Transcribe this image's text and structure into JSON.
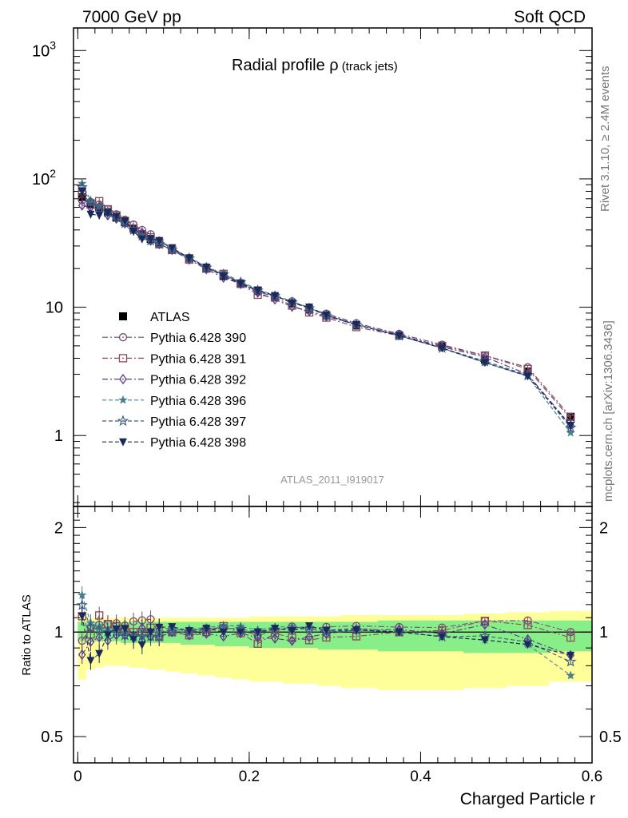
{
  "header": {
    "left": "7000 GeV pp",
    "right": "Soft QCD"
  },
  "side": {
    "top": "Rivet 3.1.10, ≥ 2.4M events",
    "bottom": "mcplots.cern.ch [arXiv:1306.3436]"
  },
  "colors": {
    "data": "#000000",
    "band_outer": "#ffff99",
    "band_inner": "#88ee88"
  },
  "chart_data": [
    {
      "type": "line",
      "panel": "main",
      "title_main": "Radial profile ",
      "title_symbol": "ρ",
      "title_sub": "(track jets)",
      "analysis_label": "ATLAS_2011_I919017",
      "xlabel": "Charged Particle r",
      "ylabel": "",
      "y_scale": "log",
      "xlim": [
        -0.005,
        0.6
      ],
      "ylim": [
        0.28,
        1500
      ],
      "x_ticks": [
        "0",
        "0.2",
        "0.4",
        "0.6"
      ],
      "x_tick_values": [
        0,
        0.2,
        0.4,
        0.6
      ],
      "y_ticks": [
        "1",
        "10",
        "10^2",
        "10^3"
      ],
      "y_tick_values": [
        1,
        10,
        100,
        1000
      ],
      "legend_position": "middle-left",
      "x": [
        0.005,
        0.015,
        0.025,
        0.035,
        0.045,
        0.055,
        0.065,
        0.075,
        0.085,
        0.095,
        0.11,
        0.13,
        0.15,
        0.17,
        0.19,
        0.21,
        0.23,
        0.25,
        0.27,
        0.29,
        0.325,
        0.375,
        0.425,
        0.475,
        0.525,
        0.575
      ],
      "series": [
        {
          "name": "ATLAS",
          "marker": "filled-square",
          "color": "#000000",
          "line": "none",
          "values": [
            72,
            64,
            60,
            55,
            50,
            46,
            41,
            37,
            34,
            32,
            28,
            24,
            20,
            17.5,
            15.3,
            13.5,
            12,
            10.7,
            9.6,
            8.6,
            7.2,
            6.0,
            4.95,
            3.9,
            3.15,
            1.4
          ]
        },
        {
          "name": "Pythia 6.428 390",
          "marker": "open-circle",
          "color": "#7a4a7a",
          "line": "dashdot",
          "values": [
            68,
            66,
            63,
            58,
            53,
            48,
            44,
            40,
            37,
            33,
            28.5,
            24.2,
            20.5,
            18,
            15.5,
            13.2,
            12.1,
            11.1,
            9.8,
            8.9,
            7.5,
            6.2,
            5.1,
            4.2,
            3.4,
            1.4
          ]
        },
        {
          "name": "Pythia 6.428 391",
          "marker": "open-square",
          "color": "#8a4a5a",
          "line": "dashdot",
          "values": [
            80,
            63,
            67,
            58,
            52,
            47,
            41,
            37,
            35,
            31,
            28,
            23.5,
            20,
            18.2,
            15.2,
            12.5,
            11.9,
            10.3,
            9.1,
            8.3,
            7.0,
            6.0,
            5.0,
            4.2,
            3.3,
            1.35
          ]
        },
        {
          "name": "Pythia 6.428 392",
          "marker": "open-diamond",
          "color": "#5a3a8a",
          "line": "dashdot",
          "values": [
            62,
            60,
            58,
            52,
            49,
            45,
            40,
            38,
            33,
            31,
            28,
            23.5,
            19.8,
            17,
            15.2,
            13,
            11.5,
            10.1,
            9.3,
            8.5,
            7.3,
            6.1,
            4.9,
            4.1,
            3.0,
            1.2
          ]
        },
        {
          "name": "Pythia 6.428 396",
          "marker": "small-star",
          "color": "#4a8090",
          "line": "dashed",
          "values": [
            92,
            68,
            62,
            56,
            51,
            46,
            40,
            36,
            34,
            32,
            28.5,
            24.5,
            20.6,
            18.3,
            15.9,
            13.7,
            12.4,
            11.1,
            9.9,
            8.7,
            7.4,
            6.0,
            4.8,
            3.7,
            2.9,
            1.05
          ]
        },
        {
          "name": "Pythia 6.428 397",
          "marker": "open-star",
          "color": "#3a5a80",
          "line": "dashed",
          "values": [
            86,
            66,
            61,
            55,
            50,
            45,
            40,
            36,
            33,
            31,
            28,
            24,
            20.3,
            18,
            15.6,
            13.5,
            12.2,
            10.9,
            9.8,
            8.6,
            7.3,
            6.0,
            4.8,
            3.8,
            2.95,
            1.15
          ]
        },
        {
          "name": "Pythia 6.428 398",
          "marker": "filled-triangle-down",
          "color": "#1a2a5a",
          "line": "dashed",
          "values": [
            80,
            53,
            52,
            54,
            51,
            47,
            39,
            34,
            34,
            33,
            29,
            24.2,
            20.5,
            17.5,
            15.3,
            13.5,
            12.3,
            10.8,
            10,
            8.7,
            7.3,
            6.0,
            4.8,
            3.7,
            2.9,
            1.2
          ]
        }
      ]
    },
    {
      "type": "line",
      "panel": "ratio",
      "ylabel": "Ratio to ATLAS",
      "xlabel": "Charged Particle r",
      "xlim": [
        -0.005,
        0.6
      ],
      "ylim": [
        0.42,
        2.3
      ],
      "y_scale": "log",
      "y_ticks": [
        "0.5",
        "1",
        "2"
      ],
      "y_tick_values": [
        0.5,
        1,
        2
      ],
      "band_outer": {
        "lo": [
          0.73,
          0.78,
          0.79,
          0.8,
          0.8,
          0.8,
          0.79,
          0.79,
          0.78,
          0.78,
          0.77,
          0.76,
          0.75,
          0.74,
          0.73,
          0.72,
          0.72,
          0.71,
          0.71,
          0.7,
          0.69,
          0.68,
          0.68,
          0.69,
          0.7,
          0.72
        ],
        "hi": [
          1.12,
          1.1,
          1.1,
          1.1,
          1.1,
          1.1,
          1.1,
          1.1,
          1.1,
          1.1,
          1.1,
          1.1,
          1.1,
          1.1,
          1.1,
          1.11,
          1.11,
          1.11,
          1.11,
          1.11,
          1.12,
          1.12,
          1.12,
          1.13,
          1.14,
          1.15
        ]
      },
      "band_inner": {
        "lo": [
          0.94,
          0.94,
          0.94,
          0.94,
          0.94,
          0.93,
          0.93,
          0.93,
          0.93,
          0.93,
          0.93,
          0.92,
          0.92,
          0.91,
          0.91,
          0.9,
          0.9,
          0.9,
          0.9,
          0.89,
          0.89,
          0.88,
          0.88,
          0.87,
          0.87,
          0.88
        ],
        "hi": [
          1.07,
          1.07,
          1.07,
          1.07,
          1.07,
          1.07,
          1.07,
          1.07,
          1.07,
          1.07,
          1.07,
          1.07,
          1.07,
          1.07,
          1.07,
          1.07,
          1.07,
          1.07,
          1.07,
          1.07,
          1.07,
          1.08,
          1.08,
          1.08,
          1.08,
          1.08
        ]
      },
      "reference_line": 1
    }
  ]
}
